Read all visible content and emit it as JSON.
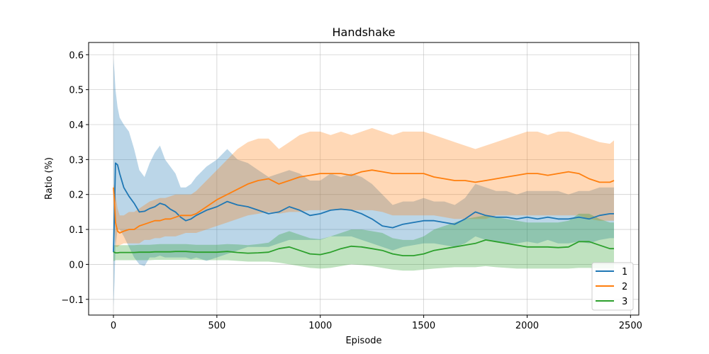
{
  "chart_data": {
    "type": "line",
    "title": "Handshake",
    "xlabel": "Episode",
    "ylabel": "Ratio (%)",
    "xlim": [
      -120,
      2540
    ],
    "ylim": [
      -0.145,
      0.635
    ],
    "xticks": [
      0,
      500,
      1000,
      1500,
      2000,
      2500
    ],
    "yticks": [
      -0.1,
      0.0,
      0.1,
      0.2,
      0.3,
      0.4,
      0.5,
      0.6
    ],
    "ytick_labels": [
      "−0.1",
      "0.0",
      "0.1",
      "0.2",
      "0.3",
      "0.4",
      "0.5",
      "0.6"
    ],
    "grid": true,
    "legend_position": "lower-right",
    "series": [
      {
        "name": "1",
        "color": "#1f77b4",
        "x": [
          0,
          5,
          10,
          20,
          30,
          50,
          75,
          100,
          125,
          150,
          175,
          200,
          225,
          250,
          275,
          300,
          325,
          350,
          375,
          400,
          450,
          500,
          550,
          600,
          650,
          700,
          750,
          800,
          850,
          900,
          950,
          1000,
          1050,
          1100,
          1150,
          1200,
          1250,
          1300,
          1350,
          1400,
          1450,
          1500,
          1550,
          1600,
          1650,
          1700,
          1750,
          1800,
          1850,
          1900,
          1950,
          2000,
          2050,
          2100,
          2150,
          2200,
          2250,
          2300,
          2350,
          2400,
          2420
        ],
        "y": [
          0.035,
          0.16,
          0.29,
          0.285,
          0.26,
          0.22,
          0.195,
          0.175,
          0.15,
          0.152,
          0.16,
          0.165,
          0.175,
          0.17,
          0.158,
          0.15,
          0.135,
          0.125,
          0.13,
          0.14,
          0.155,
          0.165,
          0.18,
          0.17,
          0.165,
          0.155,
          0.145,
          0.15,
          0.165,
          0.155,
          0.14,
          0.145,
          0.155,
          0.158,
          0.155,
          0.145,
          0.13,
          0.11,
          0.105,
          0.115,
          0.12,
          0.125,
          0.125,
          0.12,
          0.115,
          0.13,
          0.15,
          0.14,
          0.135,
          0.135,
          0.13,
          0.135,
          0.13,
          0.135,
          0.13,
          0.13,
          0.135,
          0.13,
          0.14,
          0.145,
          0.145
        ],
        "lower": [
          -0.12,
          -0.05,
          0.05,
          0.1,
          0.1,
          0.08,
          0.05,
          0.02,
          0.0,
          -0.005,
          0.02,
          0.02,
          0.025,
          0.02,
          0.02,
          0.02,
          0.02,
          0.02,
          0.015,
          0.02,
          0.01,
          0.02,
          0.03,
          0.04,
          0.05,
          0.05,
          0.05,
          0.06,
          0.07,
          0.07,
          0.07,
          0.07,
          0.08,
          0.08,
          0.08,
          0.07,
          0.06,
          0.05,
          0.04,
          0.05,
          0.055,
          0.06,
          0.06,
          0.055,
          0.05,
          0.06,
          0.08,
          0.07,
          0.065,
          0.06,
          0.06,
          0.065,
          0.06,
          0.07,
          0.06,
          0.06,
          0.065,
          0.06,
          0.07,
          0.075,
          0.075
        ],
        "upper": [
          0.59,
          0.55,
          0.5,
          0.45,
          0.42,
          0.4,
          0.38,
          0.33,
          0.27,
          0.25,
          0.29,
          0.32,
          0.34,
          0.3,
          0.28,
          0.26,
          0.22,
          0.22,
          0.23,
          0.25,
          0.28,
          0.3,
          0.33,
          0.3,
          0.29,
          0.27,
          0.25,
          0.26,
          0.27,
          0.26,
          0.24,
          0.24,
          0.26,
          0.25,
          0.26,
          0.25,
          0.23,
          0.2,
          0.17,
          0.18,
          0.18,
          0.19,
          0.18,
          0.18,
          0.17,
          0.19,
          0.23,
          0.22,
          0.21,
          0.21,
          0.2,
          0.21,
          0.21,
          0.21,
          0.21,
          0.2,
          0.21,
          0.21,
          0.22,
          0.22,
          0.22
        ]
      },
      {
        "name": "2",
        "color": "#ff7f0e",
        "x": [
          0,
          5,
          10,
          20,
          30,
          50,
          75,
          100,
          125,
          150,
          175,
          200,
          225,
          250,
          275,
          300,
          325,
          350,
          375,
          400,
          450,
          500,
          550,
          600,
          650,
          700,
          750,
          800,
          850,
          900,
          950,
          1000,
          1050,
          1100,
          1150,
          1200,
          1250,
          1300,
          1350,
          1400,
          1450,
          1500,
          1550,
          1600,
          1650,
          1700,
          1750,
          1800,
          1850,
          1900,
          1950,
          2000,
          2050,
          2100,
          2150,
          2200,
          2250,
          2300,
          2350,
          2400,
          2420
        ],
        "y": [
          0.22,
          0.18,
          0.12,
          0.095,
          0.09,
          0.095,
          0.1,
          0.1,
          0.11,
          0.115,
          0.12,
          0.125,
          0.125,
          0.13,
          0.13,
          0.135,
          0.14,
          0.14,
          0.14,
          0.145,
          0.165,
          0.185,
          0.2,
          0.215,
          0.23,
          0.24,
          0.245,
          0.23,
          0.24,
          0.25,
          0.255,
          0.26,
          0.26,
          0.26,
          0.255,
          0.265,
          0.27,
          0.265,
          0.26,
          0.26,
          0.26,
          0.26,
          0.25,
          0.245,
          0.24,
          0.24,
          0.235,
          0.24,
          0.245,
          0.25,
          0.255,
          0.26,
          0.26,
          0.255,
          0.26,
          0.265,
          0.26,
          0.245,
          0.235,
          0.235,
          0.24
        ],
        "lower": [
          0.18,
          0.1,
          0.05,
          0.05,
          0.055,
          0.06,
          0.06,
          0.06,
          0.06,
          0.07,
          0.07,
          0.075,
          0.075,
          0.08,
          0.08,
          0.08,
          0.085,
          0.09,
          0.09,
          0.09,
          0.1,
          0.11,
          0.12,
          0.13,
          0.14,
          0.145,
          0.15,
          0.145,
          0.15,
          0.15,
          0.155,
          0.155,
          0.155,
          0.155,
          0.155,
          0.155,
          0.155,
          0.15,
          0.14,
          0.14,
          0.14,
          0.14,
          0.14,
          0.135,
          0.13,
          0.13,
          0.13,
          0.13,
          0.14,
          0.14,
          0.14,
          0.14,
          0.14,
          0.14,
          0.14,
          0.14,
          0.14,
          0.13,
          0.125,
          0.125,
          0.125
        ],
        "upper": [
          0.23,
          0.22,
          0.2,
          0.16,
          0.14,
          0.14,
          0.15,
          0.15,
          0.16,
          0.17,
          0.18,
          0.185,
          0.19,
          0.19,
          0.195,
          0.2,
          0.2,
          0.2,
          0.2,
          0.21,
          0.24,
          0.27,
          0.3,
          0.33,
          0.35,
          0.36,
          0.36,
          0.33,
          0.35,
          0.37,
          0.38,
          0.38,
          0.37,
          0.38,
          0.37,
          0.38,
          0.39,
          0.38,
          0.37,
          0.38,
          0.38,
          0.38,
          0.37,
          0.36,
          0.35,
          0.34,
          0.33,
          0.34,
          0.35,
          0.36,
          0.37,
          0.38,
          0.38,
          0.37,
          0.38,
          0.38,
          0.37,
          0.36,
          0.35,
          0.345,
          0.355
        ]
      },
      {
        "name": "3",
        "color": "#2ca02c",
        "x": [
          0,
          5,
          10,
          20,
          30,
          50,
          75,
          100,
          125,
          150,
          175,
          200,
          225,
          250,
          275,
          300,
          325,
          350,
          375,
          400,
          450,
          500,
          550,
          600,
          650,
          700,
          750,
          800,
          850,
          900,
          950,
          1000,
          1050,
          1100,
          1150,
          1200,
          1250,
          1300,
          1350,
          1400,
          1450,
          1500,
          1550,
          1600,
          1650,
          1700,
          1750,
          1800,
          1850,
          1900,
          1950,
          2000,
          2050,
          2100,
          2150,
          2200,
          2250,
          2300,
          2350,
          2400,
          2420
        ],
        "y": [
          0.035,
          0.035,
          0.033,
          0.033,
          0.034,
          0.034,
          0.034,
          0.034,
          0.035,
          0.035,
          0.035,
          0.036,
          0.036,
          0.036,
          0.036,
          0.037,
          0.037,
          0.037,
          0.036,
          0.035,
          0.035,
          0.035,
          0.037,
          0.034,
          0.032,
          0.033,
          0.035,
          0.045,
          0.05,
          0.04,
          0.03,
          0.028,
          0.035,
          0.045,
          0.052,
          0.05,
          0.045,
          0.04,
          0.03,
          0.025,
          0.025,
          0.03,
          0.04,
          0.045,
          0.05,
          0.055,
          0.06,
          0.07,
          0.065,
          0.06,
          0.055,
          0.05,
          0.05,
          0.05,
          0.048,
          0.05,
          0.065,
          0.065,
          0.055,
          0.045,
          0.045
        ],
        "lower": [
          0.01,
          0.01,
          0.012,
          0.012,
          0.012,
          0.012,
          0.012,
          0.012,
          0.012,
          0.012,
          0.012,
          0.013,
          0.013,
          0.013,
          0.013,
          0.013,
          0.013,
          0.013,
          0.013,
          0.013,
          0.012,
          0.012,
          0.012,
          0.01,
          0.008,
          0.008,
          0.008,
          0.005,
          0.0,
          -0.005,
          -0.01,
          -0.012,
          -0.01,
          -0.005,
          0.0,
          -0.002,
          -0.005,
          -0.01,
          -0.015,
          -0.018,
          -0.018,
          -0.015,
          -0.012,
          -0.01,
          -0.008,
          -0.008,
          -0.008,
          -0.005,
          -0.008,
          -0.01,
          -0.012,
          -0.012,
          -0.012,
          -0.012,
          -0.012,
          -0.012,
          -0.01,
          -0.01,
          -0.012,
          -0.012,
          -0.012
        ],
        "upper": [
          0.055,
          0.055,
          0.055,
          0.055,
          0.055,
          0.055,
          0.055,
          0.055,
          0.056,
          0.056,
          0.056,
          0.057,
          0.058,
          0.058,
          0.058,
          0.058,
          0.058,
          0.058,
          0.057,
          0.056,
          0.056,
          0.056,
          0.058,
          0.057,
          0.055,
          0.058,
          0.062,
          0.085,
          0.095,
          0.085,
          0.075,
          0.072,
          0.08,
          0.09,
          0.1,
          0.1,
          0.095,
          0.09,
          0.075,
          0.07,
          0.07,
          0.08,
          0.1,
          0.11,
          0.12,
          0.13,
          0.135,
          0.14,
          0.135,
          0.13,
          0.125,
          0.12,
          0.12,
          0.12,
          0.12,
          0.125,
          0.145,
          0.145,
          0.13,
          0.12,
          0.12
        ]
      }
    ]
  }
}
